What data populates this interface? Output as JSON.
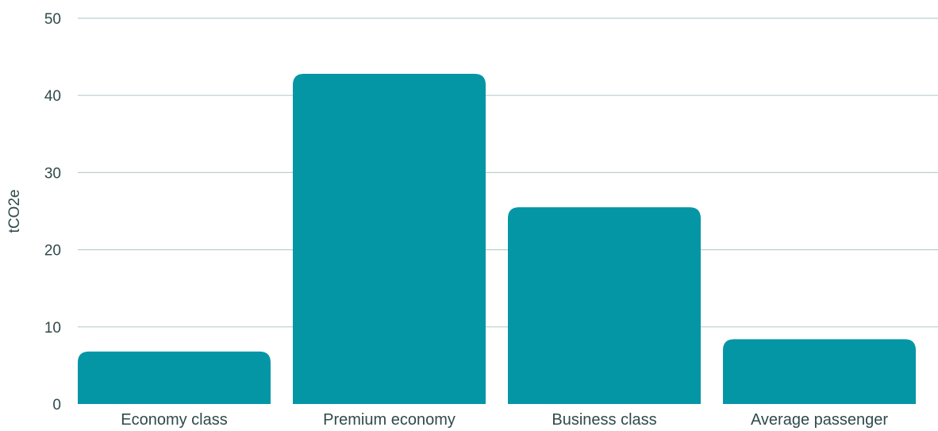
{
  "chart_data": {
    "type": "bar",
    "categories": [
      "Economy class",
      "Premium economy",
      "Business class",
      "Average passenger"
    ],
    "values": [
      6.8,
      42.8,
      25.5,
      8.4
    ],
    "title": "",
    "xlabel": "",
    "ylabel": "tCO2e",
    "ylim": [
      0,
      50
    ],
    "yticks": [
      0,
      10,
      20,
      30,
      40,
      50
    ],
    "grid": true,
    "legend": "none",
    "bar_color": "#0596a6",
    "grid_color": "#b9cfcf",
    "text_color": "#2f4a4a"
  }
}
